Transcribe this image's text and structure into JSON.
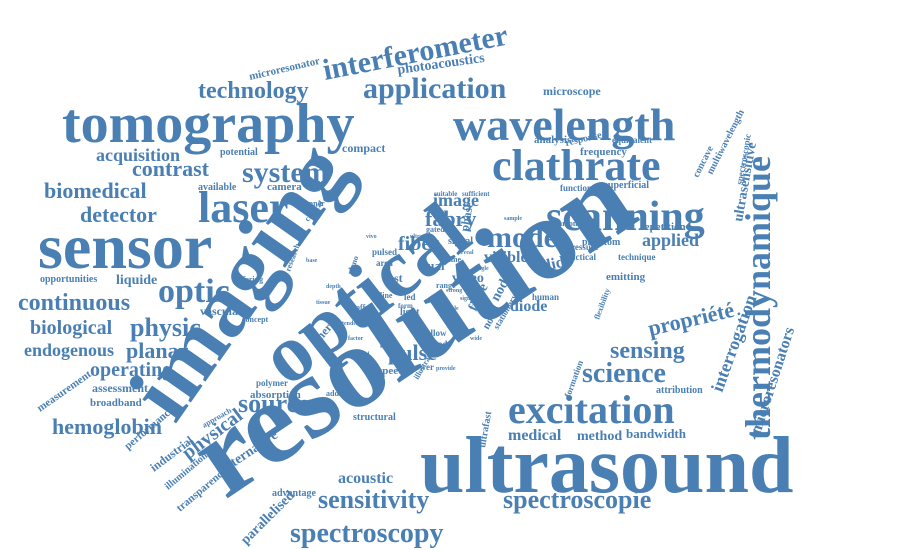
{
  "word_color": "#4a7fb3",
  "background": "#ffffff",
  "words": {
    "resolution": "resolution",
    "ultrasound": "ultrasound",
    "imaging": "imaging",
    "optical": "optical",
    "sensor": "sensor",
    "tomography": "tomography",
    "wavelength": "wavelength",
    "thermodynamique": "thermodynamique",
    "clathrate": "clathrate",
    "scanning": "scanning",
    "laser": "laser",
    "excitation": "excitation",
    "interferometer": "interferometer",
    "application": "application",
    "technology": "technology",
    "system": "system",
    "optic": "optic",
    "continuous": "continuous",
    "physic": "physic",
    "source": "source",
    "sensitivity": "sensitivity",
    "spectroscopie": "spectroscopie",
    "spectroscopy": "spectroscopy",
    "science": "science",
    "sensing": "sensing",
    "mode": "mode",
    "fabry": "fabry",
    "fiber": "fiber",
    "pulse": "pulse",
    "biomedical": "biomedical",
    "detector": "detector",
    "contrast": "contrast",
    "acquisition": "acquisition",
    "biological": "biological",
    "endogenous": "endogenous",
    "planar": "planar",
    "hemoglobin": "hemoglobin",
    "operating": "operating",
    "image": "image",
    "applied": "applied",
    "propriete": "propriété",
    "interrogation": "interrogation",
    "microresonators": "microresonators",
    "ultrasensitive": "ultrasensitive",
    "medical": "medical",
    "acoustic": "acoustic",
    "physical": "physical",
    "photoacoustics": "photoacoustics",
    "microscope": "microscope",
    "microresonator": "microresonator",
    "liquide": "liquide",
    "opportunities": "opportunities",
    "vascular": "vascular",
    "assessment": "assessment",
    "broadband": "broadband",
    "measurement": "measurement",
    "performance": "performance",
    "industrial": "industrial",
    "illumination": "illumination",
    "transparency": "transparency",
    "parallelised": "parallelised",
    "advantage": "advantage",
    "alternative": "alternative",
    "absorption": "absorption",
    "polymer": "polymer",
    "structural": "structural",
    "method": "method",
    "bandwidth": "bandwidth",
    "ultrafast": "ultrafast",
    "attribution": "attribution",
    "formation": "formation",
    "frequency": "frequency",
    "response": "response",
    "analysis": "analysis",
    "equivalent": "equivalent",
    "concave": "concave",
    "multiwavelength": "multiwavelength",
    "spectroscopic": "spectroscopic",
    "superficial": "superficial",
    "functional": "functional",
    "repetition": "repetition",
    "emitting": "emitting",
    "technique": "technique",
    "pressure": "pressure",
    "practical": "practical",
    "solide": "solide",
    "flexibility": "flexibility",
    "visible": "visible",
    "diode": "diode",
    "human": "human",
    "stationary": "stationary",
    "phantom": "phantom",
    "common": "common",
    "compact": "compact",
    "potential": "potential",
    "available": "available",
    "camera": "camera",
    "scanner": "scanner",
    "clinical": "clinical",
    "research": "research",
    "phase": "phase",
    "signal": "signal",
    "video": "video",
    "dual": "dual",
    "fast": "fast",
    "light": "light",
    "energy": "energy",
    "speed": "speed",
    "power": "power",
    "blood": "blood",
    "allow": "allow",
    "fibre": "fibre",
    "novel": "novel",
    "offering": "offering",
    "concept": "concept",
    "approach": "approach",
    "addition": "addition",
    "pulsed": "pulsed",
    "area": "area",
    "gated": "gated",
    "time": "time",
    "range": "range",
    "suitable": "suitable",
    "sufficient": "sufficient",
    "sample": "sample",
    "plano": "plano",
    "line": "line",
    "led": "led",
    "form": "form",
    "offer": "offer",
    "tender": "tender",
    "factor": "factor",
    "provide": "provide",
    "reveal": "reveal",
    "strong": "strong",
    "single": "single",
    "depth": "depth",
    "vivo": "vivo",
    "ultra": "ultra",
    "tissue": "tissue",
    "illustrate": "illustrate",
    "enable": "enable",
    "scope": "scope",
    "field": "field",
    "cost": "cost",
    "sign": "sign",
    "stage": "stage",
    "wide": "wide",
    "base": "base",
    "node": "node"
  }
}
